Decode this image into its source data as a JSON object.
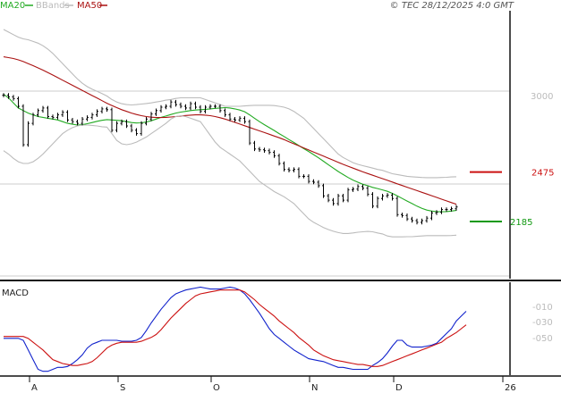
{
  "header": {
    "legend": [
      {
        "label": "MA20",
        "color": "#22aa22"
      },
      {
        "label": "BBands",
        "color": "#bbbbbb"
      },
      {
        "label": "MA50",
        "color": "#aa1111"
      }
    ],
    "timestamp": "© TEC 28/12/2025 4:0 GMT"
  },
  "colors": {
    "price": "#000000",
    "ma20": "#22aa22",
    "ma50": "#aa1111",
    "bbands": "#bbbbbb",
    "macd": "#1122cc",
    "signal": "#cc1111",
    "resistance": "#cc1111",
    "support": "#119911"
  },
  "chart_data": [
    {
      "type": "line",
      "panel": "price",
      "x_ticks": [
        "A",
        "S",
        "O",
        "N",
        "D",
        "26"
      ],
      "y_ticks": [
        "3000"
      ],
      "ylim": [
        1850,
        3420
      ],
      "levels": [
        {
          "label": "2475",
          "value": 2475,
          "color": "#cc1111"
        },
        {
          "label": "2185",
          "value": 2185,
          "color": "#119911"
        }
      ],
      "price": [
        2925,
        2915,
        2905,
        2860,
        2635,
        2760,
        2810,
        2835,
        2850,
        2800,
        2795,
        2810,
        2825,
        2780,
        2770,
        2760,
        2785,
        2795,
        2810,
        2830,
        2845,
        2840,
        2720,
        2760,
        2770,
        2745,
        2720,
        2700,
        2760,
        2785,
        2815,
        2835,
        2855,
        2860,
        2885,
        2870,
        2860,
        2850,
        2875,
        2855,
        2830,
        2855,
        2860,
        2860,
        2835,
        2810,
        2785,
        2780,
        2790,
        2770,
        2645,
        2610,
        2605,
        2600,
        2590,
        2570,
        2525,
        2490,
        2485,
        2490,
        2450,
        2450,
        2420,
        2415,
        2395,
        2335,
        2310,
        2290,
        2335,
        2310,
        2370,
        2375,
        2390,
        2380,
        2345,
        2275,
        2320,
        2335,
        2340,
        2320,
        2225,
        2220,
        2200,
        2190,
        2180,
        2190,
        2205,
        2235,
        2240,
        2255,
        2255,
        2260,
        2270
      ],
      "series": [
        {
          "name": "MA20",
          "values": [
            2930,
            2910,
            2880,
            2850,
            2835,
            2820,
            2810,
            2800,
            2795,
            2790,
            2785,
            2780,
            2770,
            2760,
            2755,
            2750,
            2752,
            2758,
            2765,
            2772,
            2778,
            2782,
            2780,
            2778,
            2775,
            2770,
            2765,
            2762,
            2763,
            2768,
            2775,
            2785,
            2795,
            2803,
            2812,
            2820,
            2826,
            2830,
            2835,
            2838,
            2840,
            2842,
            2845,
            2848,
            2850,
            2852,
            2850,
            2845,
            2838,
            2828,
            2810,
            2790,
            2770,
            2752,
            2735,
            2718,
            2700,
            2683,
            2665,
            2648,
            2630,
            2612,
            2595,
            2577,
            2558,
            2538,
            2518,
            2498,
            2478,
            2460,
            2443,
            2428,
            2415,
            2403,
            2395,
            2385,
            2378,
            2370,
            2362,
            2350,
            2335,
            2320,
            2305,
            2290,
            2275,
            2262,
            2252,
            2246,
            2243,
            2242,
            2243,
            2246,
            2250
          ]
        },
        {
          "name": "MA50",
          "values": [
            3150,
            3145,
            3140,
            3132,
            3122,
            3110,
            3098,
            3085,
            3072,
            3058,
            3043,
            3028,
            3013,
            2998,
            2983,
            2968,
            2953,
            2938,
            2923,
            2908,
            2893,
            2878,
            2865,
            2852,
            2840,
            2830,
            2820,
            2812,
            2805,
            2800,
            2796,
            2794,
            2794,
            2795,
            2797,
            2800,
            2803,
            2806,
            2808,
            2810,
            2810,
            2808,
            2805,
            2800,
            2793,
            2785,
            2776,
            2766,
            2756,
            2746,
            2736,
            2726,
            2716,
            2706,
            2696,
            2686,
            2676,
            2665,
            2652,
            2640,
            2628,
            2616,
            2604,
            2592,
            2580,
            2568,
            2556,
            2544,
            2532,
            2520,
            2509,
            2498,
            2487,
            2476,
            2466,
            2456,
            2446,
            2436,
            2426,
            2416,
            2406,
            2396,
            2386,
            2376,
            2366,
            2356,
            2346,
            2336,
            2326,
            2316,
            2306,
            2296,
            2286
          ]
        },
        {
          "name": "BBands upper",
          "values": [
            3310,
            3295,
            3280,
            3265,
            3255,
            3250,
            3240,
            3230,
            3215,
            3195,
            3170,
            3140,
            3110,
            3080,
            3050,
            3020,
            2995,
            2975,
            2960,
            2948,
            2935,
            2920,
            2900,
            2885,
            2875,
            2870,
            2868,
            2870,
            2873,
            2876,
            2880,
            2885,
            2890,
            2896,
            2900,
            2906,
            2910,
            2910,
            2910,
            2910,
            2910,
            2900,
            2890,
            2880,
            2870,
            2860,
            2860,
            2860,
            2860,
            2862,
            2864,
            2866,
            2866,
            2866,
            2866,
            2864,
            2860,
            2855,
            2845,
            2830,
            2810,
            2790,
            2760,
            2730,
            2700,
            2670,
            2640,
            2610,
            2580,
            2560,
            2545,
            2530,
            2520,
            2512,
            2505,
            2498,
            2490,
            2485,
            2475,
            2465,
            2460,
            2455,
            2450,
            2447,
            2445,
            2443,
            2442,
            2442,
            2442,
            2443,
            2444,
            2446,
            2447
          ]
        },
        {
          "name": "BBands lower",
          "values": [
            2600,
            2580,
            2555,
            2535,
            2525,
            2525,
            2535,
            2555,
            2580,
            2610,
            2640,
            2670,
            2700,
            2720,
            2735,
            2745,
            2750,
            2750,
            2748,
            2745,
            2740,
            2738,
            2700,
            2660,
            2640,
            2635,
            2640,
            2650,
            2665,
            2680,
            2700,
            2720,
            2740,
            2760,
            2785,
            2800,
            2805,
            2800,
            2790,
            2780,
            2770,
            2730,
            2690,
            2650,
            2620,
            2600,
            2580,
            2560,
            2540,
            2510,
            2480,
            2450,
            2420,
            2400,
            2380,
            2360,
            2345,
            2330,
            2310,
            2290,
            2260,
            2230,
            2200,
            2180,
            2165,
            2150,
            2138,
            2128,
            2120,
            2115,
            2115,
            2118,
            2122,
            2125,
            2127,
            2125,
            2118,
            2112,
            2100,
            2095,
            2095,
            2095,
            2096,
            2096,
            2098,
            2100,
            2102,
            2102,
            2102,
            2102,
            2102,
            2103,
            2105
          ]
        }
      ]
    },
    {
      "type": "line",
      "panel": "macd",
      "title": "MACD",
      "y_ticks": [
        "-010",
        "-030",
        "-050"
      ],
      "ylim": [
        -86,
        10
      ],
      "series": [
        {
          "name": "MACD",
          "values": [
            -48,
            -48,
            -48,
            -48,
            -50,
            -60,
            -70,
            -80,
            -82,
            -82,
            -80,
            -78,
            -78,
            -77,
            -74,
            -70,
            -65,
            -58,
            -54,
            -52,
            -50,
            -50,
            -50,
            -50,
            -51,
            -51,
            -51,
            -50,
            -47,
            -40,
            -32,
            -25,
            -18,
            -12,
            -6,
            -2,
            0,
            2,
            3,
            4,
            5,
            4,
            3,
            3,
            3,
            4,
            5,
            4,
            2,
            -2,
            -8,
            -15,
            -22,
            -30,
            -38,
            -44,
            -48,
            -52,
            -56,
            -60,
            -63,
            -66,
            -69,
            -70,
            -71,
            -72,
            -74,
            -76,
            -78,
            -78,
            -79,
            -80,
            -80,
            -80,
            -80,
            -76,
            -73,
            -69,
            -63,
            -56,
            -50,
            -50,
            -55,
            -57,
            -57,
            -57,
            -56,
            -55,
            -53,
            -48,
            -43,
            -38,
            -30,
            -25,
            -20
          ]
        },
        {
          "name": "Signal",
          "values": [
            -46,
            -46,
            -46,
            -46,
            -46,
            -48,
            -52,
            -56,
            -60,
            -65,
            -70,
            -72,
            -74,
            -75,
            -76,
            -76,
            -75,
            -74,
            -72,
            -68,
            -63,
            -58,
            -55,
            -53,
            -52,
            -52,
            -52,
            -52,
            -51,
            -49,
            -47,
            -44,
            -39,
            -33,
            -27,
            -22,
            -17,
            -12,
            -8,
            -4,
            -2,
            -1,
            0,
            1,
            2,
            2,
            2,
            2,
            2,
            0,
            -4,
            -8,
            -13,
            -17,
            -21,
            -25,
            -30,
            -34,
            -38,
            -42,
            -47,
            -51,
            -55,
            -60,
            -63,
            -66,
            -68,
            -70,
            -71,
            -72,
            -73,
            -74,
            -75,
            -75,
            -76,
            -77,
            -77,
            -76,
            -74,
            -72,
            -70,
            -68,
            -66,
            -64,
            -62,
            -60,
            -58,
            -56,
            -54,
            -52,
            -48,
            -45,
            -42,
            -38,
            -34
          ]
        }
      ]
    }
  ]
}
